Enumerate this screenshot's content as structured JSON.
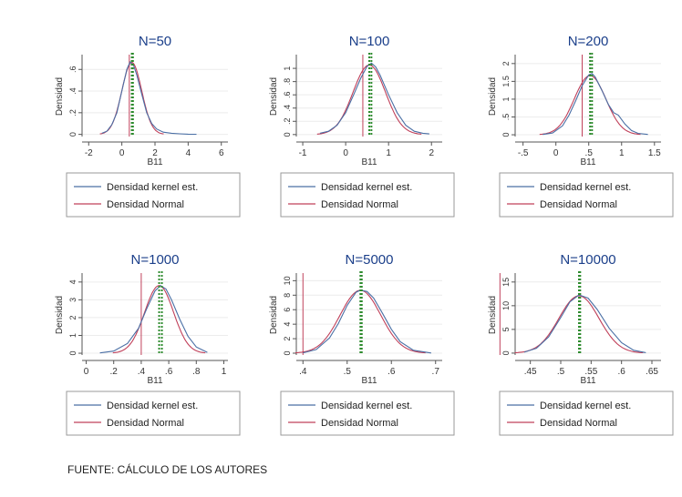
{
  "source": "FUENTE: CÁLCULO DE LOS AUTORES",
  "colors": {
    "title": "#1b3f8a",
    "kernel": "#4a6fa5",
    "normal": "#c0405a",
    "mean": "#2e8b2e",
    "axis": "#555555"
  },
  "legend": {
    "kernel": "Densidad kernel est.",
    "normal": "Densidad Normal"
  },
  "chart_data": [
    {
      "type": "line",
      "title": "N=50",
      "xlabel": "B11",
      "ylabel": "Densidad",
      "xlim": [
        -2.4,
        6.4
      ],
      "ylim": [
        -0.02,
        0.72
      ],
      "xticks": [
        -2,
        0,
        2,
        4,
        6
      ],
      "xtick_labels": [
        "-2",
        "0",
        "2",
        "4",
        "6"
      ],
      "yticks": [
        0,
        0.2,
        0.4,
        0.6
      ],
      "ytick_labels": [
        "0",
        ".2",
        ".4",
        ".6"
      ],
      "normal": {
        "mu": 0.6,
        "sd": 0.6
      },
      "kernel": {
        "x": [
          -1.2,
          -0.9,
          -0.6,
          -0.3,
          0,
          0.3,
          0.5,
          0.7,
          0.9,
          1.2,
          1.5,
          1.8,
          2.1,
          2.5,
          3.0,
          3.5,
          4.0,
          4.5
        ],
        "y": [
          0.01,
          0.03,
          0.09,
          0.2,
          0.4,
          0.6,
          0.67,
          0.64,
          0.55,
          0.37,
          0.2,
          0.1,
          0.05,
          0.02,
          0.01,
          0.005,
          0.002,
          0.001
        ]
      },
      "redline_x": 0.45,
      "mean_x": 0.6,
      "mean_x2": 0.67
    },
    {
      "type": "line",
      "title": "N=100",
      "xlabel": "B11",
      "ylabel": "Densidad",
      "xlim": [
        -1.15,
        2.25
      ],
      "ylim": [
        -0.03,
        1.18
      ],
      "xticks": [
        -1,
        0,
        1,
        2
      ],
      "xtick_labels": [
        "-1",
        "0",
        "1",
        "2"
      ],
      "yticks": [
        0,
        0.2,
        0.4,
        0.6,
        0.8,
        1.0
      ],
      "ytick_labels": [
        "0",
        ".2",
        ".4",
        ".6",
        ".8",
        "1"
      ],
      "normal": {
        "mu": 0.55,
        "sd": 0.38
      },
      "kernel": {
        "x": [
          -0.6,
          -0.4,
          -0.2,
          0,
          0.2,
          0.35,
          0.5,
          0.6,
          0.7,
          0.8,
          1.0,
          1.2,
          1.4,
          1.6,
          1.8,
          1.95
        ],
        "y": [
          0.02,
          0.05,
          0.14,
          0.33,
          0.62,
          0.85,
          1.03,
          1.08,
          1.02,
          0.9,
          0.6,
          0.33,
          0.14,
          0.05,
          0.02,
          0.01
        ]
      },
      "redline_x": 0.4,
      "mean_x": 0.55,
      "mean_x2": 0.6
    },
    {
      "type": "line",
      "title": "N=200",
      "xlabel": "B11",
      "ylabel": "Densidad",
      "xlim": [
        -0.62,
        1.6
      ],
      "ylim": [
        -0.05,
        2.2
      ],
      "xticks": [
        -0.5,
        0,
        0.5,
        1,
        1.5
      ],
      "xtick_labels": [
        "-.5",
        "0",
        ".5",
        "1",
        "1.5"
      ],
      "yticks": [
        0,
        0.5,
        1,
        1.5,
        2
      ],
      "ytick_labels": [
        "0",
        ".5",
        "1",
        "1.5",
        "2"
      ],
      "normal": {
        "mu": 0.52,
        "sd": 0.24
      },
      "kernel": {
        "x": [
          -0.2,
          -0.05,
          0.1,
          0.2,
          0.3,
          0.4,
          0.5,
          0.55,
          0.6,
          0.7,
          0.8,
          0.88,
          0.95,
          1.05,
          1.15,
          1.25,
          1.4
        ],
        "y": [
          0.01,
          0.05,
          0.25,
          0.55,
          0.95,
          1.38,
          1.68,
          1.72,
          1.62,
          1.25,
          0.85,
          0.62,
          0.55,
          0.3,
          0.12,
          0.04,
          0.01
        ]
      },
      "redline_x": 0.4,
      "mean_x": 0.52,
      "mean_x2": 0.55
    },
    {
      "type": "line",
      "title": "N=1000",
      "xlabel": "B11",
      "ylabel": "Densidad",
      "xlim": [
        -0.03,
        1.03
      ],
      "ylim": [
        -0.1,
        4.4
      ],
      "xticks": [
        0,
        0.2,
        0.4,
        0.6,
        0.8,
        1
      ],
      "xtick_labels": [
        "0",
        ".2",
        ".4",
        ".6",
        ".8",
        "1"
      ],
      "yticks": [
        0,
        1,
        2,
        3,
        4
      ],
      "ytick_labels": [
        "0",
        "1",
        "2",
        "3",
        "4"
      ],
      "normal": {
        "mu": 0.53,
        "sd": 0.105
      },
      "kernel": {
        "x": [
          0.1,
          0.2,
          0.3,
          0.38,
          0.44,
          0.5,
          0.54,
          0.58,
          0.62,
          0.68,
          0.74,
          0.8,
          0.88
        ],
        "y": [
          0.02,
          0.12,
          0.55,
          1.4,
          2.5,
          3.5,
          3.8,
          3.6,
          3.0,
          1.9,
          0.95,
          0.35,
          0.05
        ]
      },
      "redline_x": 0.4,
      "mean_x": 0.53,
      "mean_x2": 0.55
    },
    {
      "type": "line",
      "title": "N=5000",
      "xlabel": "B11",
      "ylabel": "Densidad",
      "xlim": [
        0.385,
        0.715
      ],
      "ylim": [
        -0.25,
        10.8
      ],
      "xticks": [
        0.4,
        0.5,
        0.6,
        0.7
      ],
      "xtick_labels": [
        ".4",
        ".5",
        ".6",
        ".7"
      ],
      "yticks": [
        0,
        2,
        4,
        6,
        8,
        10
      ],
      "ytick_labels": [
        "0",
        "2",
        "4",
        "6",
        "8",
        "10"
      ],
      "normal": {
        "mu": 0.53,
        "sd": 0.046
      },
      "kernel": {
        "x": [
          0.4,
          0.43,
          0.46,
          0.48,
          0.5,
          0.52,
          0.53,
          0.545,
          0.56,
          0.58,
          0.6,
          0.62,
          0.65,
          0.69
        ],
        "y": [
          0.05,
          0.5,
          2.1,
          4.1,
          6.6,
          8.4,
          8.7,
          8.5,
          7.6,
          5.5,
          3.3,
          1.6,
          0.4,
          0.02
        ]
      },
      "redline_x": 0.4,
      "mean_x": 0.53,
      "mean_x2": 0.533
    },
    {
      "type": "line",
      "title": "N=10000",
      "xlabel": "B11",
      "ylabel": "Densidad",
      "xlim": [
        0.425,
        0.665
      ],
      "ylim": [
        -0.4,
        16.5
      ],
      "xticks": [
        0.45,
        0.5,
        0.55,
        0.6,
        0.65
      ],
      "xtick_labels": [
        ".45",
        ".5",
        ".55",
        ".6",
        ".65"
      ],
      "yticks": [
        0,
        5,
        10,
        15
      ],
      "ytick_labels": [
        "0",
        "5",
        "10",
        "15"
      ],
      "normal": {
        "mu": 0.53,
        "sd": 0.033
      },
      "kernel": {
        "x": [
          0.44,
          0.46,
          0.48,
          0.5,
          0.515,
          0.53,
          0.545,
          0.56,
          0.58,
          0.6,
          0.62,
          0.64
        ],
        "y": [
          0.2,
          1.0,
          3.4,
          7.5,
          10.8,
          12.3,
          11.6,
          9.2,
          5.2,
          2.2,
          0.6,
          0.1
        ]
      },
      "redline_x": 0.4,
      "mean_x": 0.53,
      "mean_x2": 0.532
    }
  ]
}
